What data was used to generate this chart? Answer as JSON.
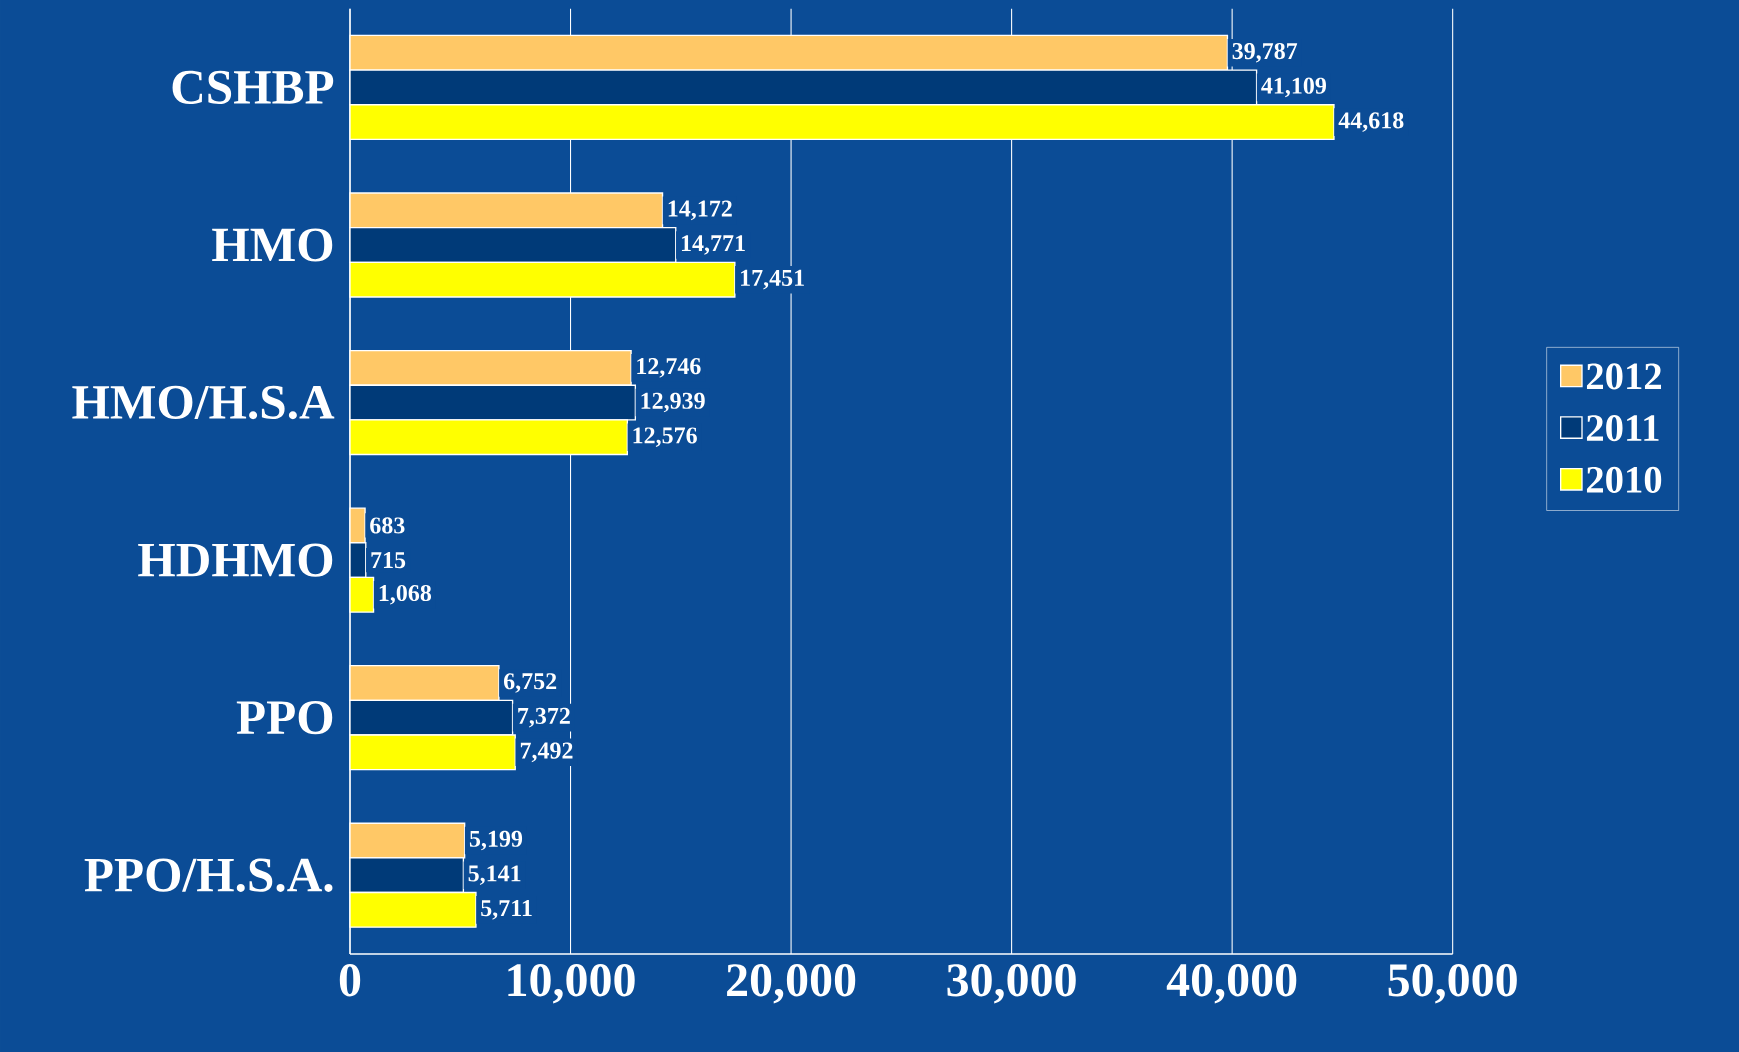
{
  "chart_data": {
    "type": "bar",
    "orientation": "horizontal",
    "categories": [
      "CSHBP",
      "HMO",
      "HMO/H.S.A",
      "HDHMO",
      "PPO",
      "PPO/H.S.A."
    ],
    "series": [
      {
        "name": "2012",
        "color": "#ffc866",
        "values": [
          39787,
          14172,
          12746,
          683,
          6752,
          5199
        ],
        "value_labels": [
          "39,787",
          "14,172",
          "12,746",
          "683",
          "6,752",
          "5,199"
        ]
      },
      {
        "name": "2011",
        "color": "#003a78",
        "values": [
          41109,
          14771,
          12939,
          715,
          7372,
          5141
        ],
        "value_labels": [
          "41,109",
          "14,771",
          "12,939",
          "715",
          "7,372",
          "5,141"
        ]
      },
      {
        "name": "2010",
        "color": "#ffff00",
        "values": [
          44618,
          17451,
          12576,
          1068,
          7492,
          5711
        ],
        "value_labels": [
          "44,618",
          "17,451",
          "12,576",
          "1,068",
          "7,492",
          "5,711"
        ]
      }
    ],
    "xlim": [
      0,
      50000
    ],
    "xticks": [
      0,
      {
        "value": 10000,
        "label": "10,000"
      },
      {
        "value": 20000,
        "label": "20,000"
      },
      {
        "value": 30000,
        "label": "30,000"
      },
      {
        "value": 40000,
        "label": "40,000"
      },
      {
        "value": 50000,
        "label": "50,000"
      }
    ],
    "grid": "x",
    "legend": "right"
  }
}
